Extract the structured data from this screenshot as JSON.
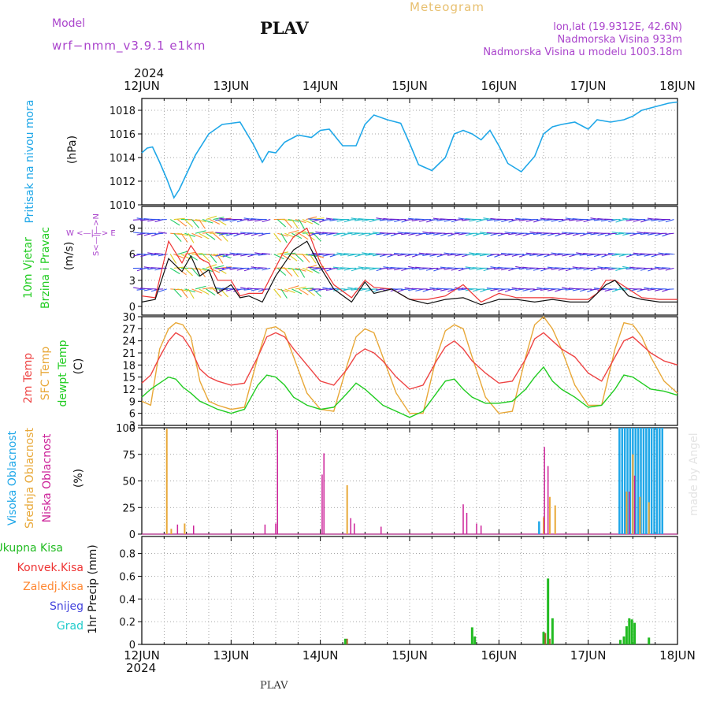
{
  "header": {
    "model_label": "Model",
    "model_name": "wrf−nmm_v3.9.1  e1km",
    "station": "PLAV",
    "product": "Meteogram",
    "lonlat": "lon,lat (19.9312E, 42.6N)",
    "elevation": "Nadmorska Visina 933m",
    "model_elevation": "Nadmorska Visina u modelu 1003.18m",
    "year_top": "2024",
    "year_bottom": "2024",
    "footer_station": "PLAV",
    "watermark": "made by Angel"
  },
  "colors": {
    "pressure": "#1fa7e8",
    "t2m": "#ee4444",
    "sfc": "#e8a838",
    "dew": "#22cc22",
    "high_cloud": "#1fa7e8",
    "mid_cloud": "#e8a838",
    "low_cloud": "#cc2299",
    "total_precip": "#22bb22",
    "conv_precip": "#ee3333",
    "grid_precip": "#ff8833",
    "snow": "#4444dd",
    "hail": "#22cccc",
    "model": "#aa44cc"
  },
  "x_axis": {
    "labels": [
      "12JUN",
      "13JUN",
      "14JUN",
      "15JUN",
      "16JUN",
      "17JUN",
      "18JUN"
    ]
  },
  "chart_data": [
    {
      "id": "pressure",
      "type": "line",
      "ylabel": "Pritisak na nivou mora",
      "unit": "(hPa)",
      "ylim": [
        1010,
        1019
      ],
      "yticks": [
        1010,
        1012,
        1014,
        1016,
        1018
      ],
      "x_days": [
        0,
        0.06,
        0.12,
        0.2,
        0.28,
        0.36,
        0.42,
        0.5,
        0.6,
        0.75,
        0.9,
        1.0,
        1.1,
        1.18,
        1.25,
        1.35,
        1.42,
        1.5,
        1.6,
        1.75,
        1.9,
        2.0,
        2.1,
        2.25,
        2.4,
        2.5,
        2.6,
        2.75,
        2.9,
        3.0,
        3.1,
        3.25,
        3.4,
        3.5,
        3.6,
        3.7,
        3.8,
        3.9,
        4.0,
        4.1,
        4.25,
        4.4,
        4.5,
        4.6,
        4.7,
        4.85,
        5.0,
        5.1,
        5.25,
        5.4,
        5.5,
        5.6,
        5.75,
        5.9,
        6.0
      ],
      "series": [
        {
          "values": [
            1014.4,
            1014.8,
            1014.9,
            1013.6,
            1012.2,
            1010.6,
            1011.3,
            1012.6,
            1014.2,
            1016.0,
            1016.8,
            1016.9,
            1017.0,
            1016.0,
            1015.1,
            1013.6,
            1014.5,
            1014.4,
            1015.3,
            1015.9,
            1015.7,
            1016.3,
            1016.4,
            1015.0,
            1015.0,
            1016.8,
            1017.6,
            1017.2,
            1016.9,
            1015.2,
            1013.4,
            1012.9,
            1014.0,
            1016.0,
            1016.3,
            1016.0,
            1015.5,
            1016.3,
            1015.0,
            1013.5,
            1012.8,
            1014.1,
            1016.0,
            1016.6,
            1016.8,
            1017.0,
            1016.4,
            1017.2,
            1017.0,
            1017.2,
            1017.5,
            1018.0,
            1018.3,
            1018.6,
            1018.7
          ]
        }
      ]
    },
    {
      "id": "wind",
      "type": "line",
      "ylabel_lines": [
        "10m Vjetar",
        "Brzina i Pravac"
      ],
      "unit": "(m/s)",
      "compass": "W  <—|—>  E",
      "compass_vertical": "S<—|—>N",
      "ylim": [
        -1,
        11.5
      ],
      "yticks": [
        0,
        3,
        6,
        9
      ],
      "x_days": [
        0,
        0.15,
        0.3,
        0.45,
        0.55,
        0.65,
        0.75,
        0.85,
        1.0,
        1.1,
        1.2,
        1.35,
        1.5,
        1.6,
        1.7,
        1.85,
        2.0,
        2.15,
        2.35,
        2.5,
        2.6,
        2.8,
        3.0,
        3.2,
        3.4,
        3.6,
        3.8,
        4.0,
        4.2,
        4.4,
        4.6,
        4.8,
        5.0,
        5.1,
        5.2,
        5.3,
        5.45,
        5.6,
        5.8,
        6.0
      ],
      "series": [
        {
          "name": "speed",
          "values": [
            0.5,
            0.8,
            5.5,
            4.0,
            5.8,
            3.5,
            4.2,
            1.5,
            2.5,
            1.0,
            1.2,
            0.5,
            3.5,
            5.0,
            6.5,
            7.5,
            4.5,
            2.0,
            0.5,
            2.8,
            1.5,
            2.0,
            0.8,
            0.3,
            0.8,
            1.0,
            0.2,
            0.8,
            0.8,
            0.5,
            0.8,
            0.5,
            0.5,
            1.5,
            2.5,
            3.0,
            1.2,
            0.8,
            0.5,
            0.5
          ]
        },
        {
          "name": "gust",
          "values": [
            1.2,
            1.0,
            7.5,
            5.0,
            7.0,
            5.5,
            5.0,
            3.0,
            3.0,
            1.2,
            1.5,
            1.5,
            4.5,
            6.5,
            8.0,
            9.0,
            5.0,
            2.5,
            1.0,
            3.0,
            2.2,
            2.0,
            0.8,
            0.8,
            1.2,
            2.5,
            0.5,
            1.5,
            1.0,
            1.0,
            1.0,
            0.8,
            0.8,
            1.5,
            3.0,
            3.0,
            2.0,
            1.0,
            0.8,
            0.8
          ]
        }
      ]
    },
    {
      "id": "temperature",
      "type": "line",
      "ylabel_lines": [
        "2m Temp",
        "SFC Temp",
        "dewpt Temp"
      ],
      "unit": "(C)",
      "ylim": [
        3,
        30
      ],
      "yticks": [
        3,
        6,
        9,
        12,
        15,
        18,
        21,
        24,
        27,
        30
      ],
      "x_days": [
        0,
        0.1,
        0.2,
        0.3,
        0.38,
        0.46,
        0.55,
        0.65,
        0.75,
        0.85,
        1.0,
        1.15,
        1.3,
        1.4,
        1.5,
        1.6,
        1.7,
        1.85,
        2.0,
        2.15,
        2.3,
        2.4,
        2.5,
        2.6,
        2.7,
        2.85,
        3.0,
        3.15,
        3.3,
        3.4,
        3.5,
        3.6,
        3.7,
        3.85,
        4.0,
        4.15,
        4.3,
        4.4,
        4.5,
        4.6,
        4.7,
        4.85,
        5.0,
        5.15,
        5.3,
        5.4,
        5.5,
        5.6,
        5.7,
        5.85,
        6.0
      ],
      "series": [
        {
          "name": "2m Temp",
          "values": [
            13.5,
            15.5,
            20.0,
            24.0,
            26.0,
            25.0,
            22.0,
            17.0,
            15.0,
            14.0,
            13.0,
            13.5,
            20.0,
            25.0,
            26.0,
            25.0,
            22.0,
            18.0,
            14.0,
            13.0,
            17.0,
            20.5,
            22.0,
            21.0,
            19.0,
            15.0,
            12.0,
            13.0,
            19.0,
            22.5,
            24.0,
            22.0,
            19.0,
            16.0,
            13.5,
            14.0,
            19.5,
            24.5,
            26.0,
            24.0,
            22.0,
            20.0,
            16.0,
            14.0,
            20.0,
            24.0,
            25.0,
            23.0,
            21.0,
            19.0,
            18.0
          ]
        },
        {
          "name": "SFC Temp",
          "values": [
            9.0,
            8.0,
            22.0,
            27.0,
            28.5,
            28.0,
            25.0,
            14.0,
            9.0,
            8.0,
            7.0,
            7.5,
            20.0,
            27.0,
            27.5,
            26.0,
            20.0,
            11.0,
            7.0,
            6.5,
            18.0,
            25.0,
            27.0,
            26.0,
            20.0,
            11.0,
            6.0,
            6.0,
            20.0,
            26.5,
            28.0,
            27.0,
            20.0,
            10.0,
            6.0,
            6.5,
            20.0,
            28.0,
            30.0,
            27.0,
            22.0,
            13.0,
            8.0,
            8.0,
            22.0,
            28.5,
            28.0,
            25.0,
            20.0,
            14.0,
            11.0
          ]
        },
        {
          "name": "dewpt Temp",
          "values": [
            10.0,
            12.0,
            13.5,
            15.0,
            14.5,
            12.5,
            11.0,
            9.0,
            8.0,
            7.0,
            6.0,
            7.0,
            13.0,
            15.5,
            15.0,
            13.0,
            10.0,
            8.0,
            7.0,
            7.5,
            11.0,
            13.5,
            12.0,
            10.0,
            8.0,
            6.5,
            5.0,
            6.5,
            11.0,
            14.0,
            14.5,
            12.0,
            10.0,
            8.5,
            8.5,
            9.0,
            12.0,
            15.0,
            17.5,
            14.0,
            12.0,
            10.0,
            7.5,
            8.0,
            12.0,
            15.5,
            15.0,
            13.5,
            12.0,
            11.5,
            10.5
          ]
        }
      ]
    },
    {
      "id": "cloud",
      "type": "bar",
      "ylabel_lines": [
        "Visoka Oblacnost",
        "Srednja Oblacnost",
        "Niska Oblacnost"
      ],
      "unit": "(%)",
      "ylim": [
        0,
        100
      ],
      "yticks": [
        0,
        25,
        50,
        75,
        100
      ],
      "high_cloud": {
        "x_days": [
          4.45,
          5.35,
          5.38,
          5.41,
          5.44,
          5.47,
          5.5,
          5.53,
          5.56,
          5.59,
          5.62,
          5.65,
          5.68,
          5.71,
          5.74,
          5.77,
          5.8,
          5.83
        ],
        "values": [
          12,
          100,
          100,
          100,
          100,
          100,
          100,
          100,
          100,
          100,
          100,
          100,
          100,
          100,
          100,
          100,
          100,
          100
        ]
      },
      "mid_cloud": {
        "x_days": [
          0.28,
          0.33,
          0.48,
          2.3,
          4.5,
          4.57,
          4.63,
          5.43,
          5.5,
          5.58,
          5.68
        ],
        "values": [
          99,
          5,
          10,
          46,
          16,
          35,
          27,
          40,
          75,
          35,
          30
        ]
      },
      "low_cloud": {
        "x_days": [
          0.4,
          0.58,
          1.38,
          1.5,
          1.52,
          2.02,
          2.04,
          2.34,
          2.38,
          2.68,
          3.6,
          3.64,
          3.75,
          3.8,
          4.51,
          4.55,
          5.46,
          5.52
        ],
        "values": [
          9,
          8,
          9,
          10,
          98,
          56,
          76,
          15,
          10,
          7,
          28,
          20,
          10,
          8,
          82,
          64,
          40,
          55
        ]
      }
    },
    {
      "id": "precip",
      "type": "bar",
      "ylabel_lines": [
        "Ukupna  Kisa",
        "Konvek.Kisa",
        "Zaledj.Kisa",
        "Snijeg",
        "Grad"
      ],
      "unit": "1hr Precip (mm)",
      "ylim": [
        0,
        0.95
      ],
      "yticks": [
        0,
        0.2,
        0.4,
        0.6,
        0.8
      ],
      "total": {
        "x_days": [
          2.28,
          3.7,
          3.73,
          4.5,
          4.55,
          4.6,
          5.36,
          5.4,
          5.43,
          5.46,
          5.49,
          5.52,
          5.68
        ],
        "values": [
          0.05,
          0.15,
          0.07,
          0.11,
          0.58,
          0.23,
          0.04,
          0.07,
          0.16,
          0.23,
          0.22,
          0.19,
          0.06
        ]
      },
      "convective": {
        "x_days": [
          2.3,
          4.52,
          4.57
        ],
        "values": [
          0.05,
          0.1,
          0.05
        ]
      }
    }
  ]
}
